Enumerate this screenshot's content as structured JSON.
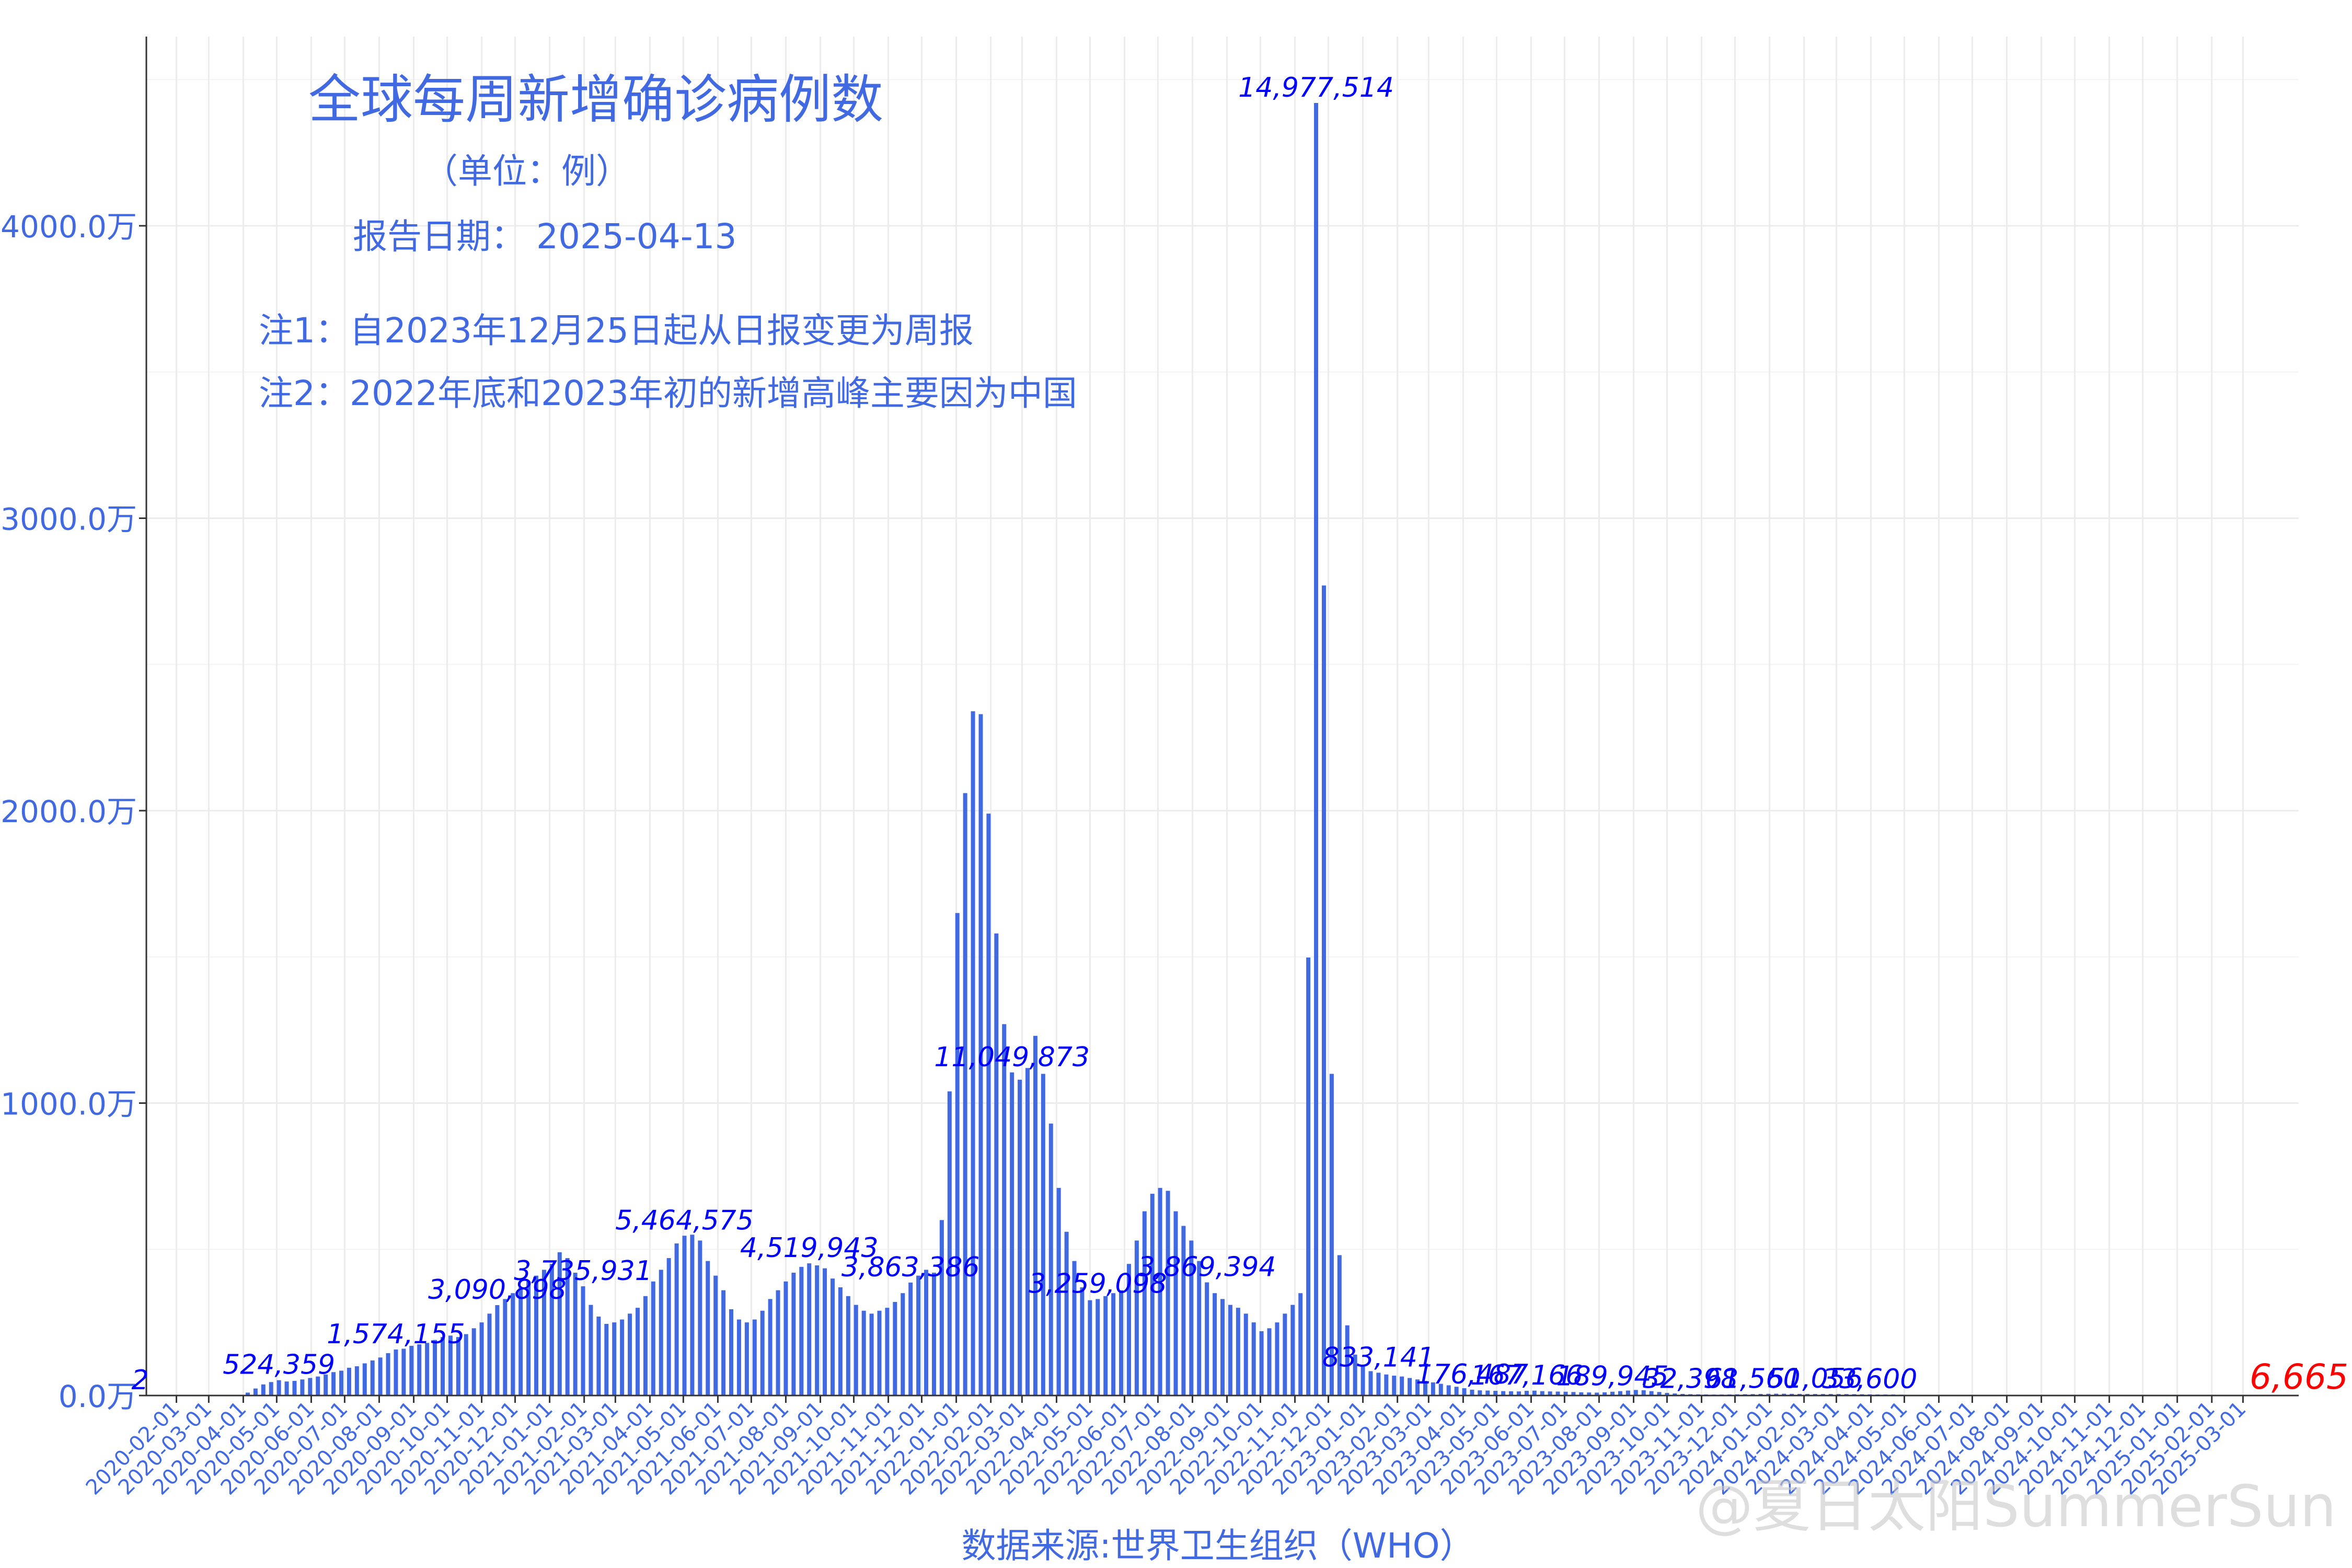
{
  "chart_data": {
    "type": "bar",
    "title": "全球每周新增确诊病例数",
    "subtitle": "（单位：例）",
    "report_date": "报告日期： 2025-04-13",
    "notes": [
      "注1：自2023年12月25日起从日报变更为周报",
      "注2：2022年底和2023年初的新增高峰主要因为中国"
    ],
    "xlabel": "数据来源:世界卫生组织（WHO）",
    "watermark": "@夏日太阳SummerSun",
    "y_ticks": [
      "0.0万",
      "1000.0万",
      "2000.0万",
      "3000.0万",
      "4000.0万"
    ],
    "y_tick_values": [
      0,
      10000000,
      20000000,
      30000000,
      40000000
    ],
    "ylim": [
      0,
      45000000
    ],
    "x_ticks": [
      "2020-02-01",
      "2020-03-01",
      "2020-04-01",
      "2020-05-01",
      "2020-06-01",
      "2020-07-01",
      "2020-08-01",
      "2020-09-01",
      "2020-10-01",
      "2020-11-01",
      "2020-12-01",
      "2021-01-01",
      "2021-02-01",
      "2021-03-01",
      "2021-04-01",
      "2021-05-01",
      "2021-06-01",
      "2021-07-01",
      "2021-08-01",
      "2021-09-01",
      "2021-10-01",
      "2021-11-01",
      "2021-12-01",
      "2022-01-01",
      "2022-02-01",
      "2022-03-01",
      "2022-04-01",
      "2022-05-01",
      "2022-06-01",
      "2022-07-01",
      "2022-08-01",
      "2022-09-01",
      "2022-10-01",
      "2022-11-01",
      "2022-12-01",
      "2023-01-01",
      "2023-02-01",
      "2023-03-01",
      "2023-04-01",
      "2023-05-01",
      "2023-06-01",
      "2023-07-01",
      "2023-08-01",
      "2023-09-01",
      "2023-10-01",
      "2023-11-01",
      "2023-12-01",
      "2024-01-01",
      "2024-02-01",
      "2024-03-01",
      "2024-04-01",
      "2024-05-01",
      "2024-06-01",
      "2024-07-01",
      "2024-08-01",
      "2024-09-01",
      "2024-10-01",
      "2024-11-01",
      "2024-12-01",
      "2025-01-01",
      "2025-02-01",
      "2025-03-01"
    ],
    "x_start": "2020-01-05",
    "week_step_days": 7,
    "values": [
      2,
      0,
      0,
      0,
      0,
      0,
      0,
      0,
      0,
      0,
      0,
      5000,
      20000,
      100000,
      240000,
      380000,
      460000,
      524359,
      480000,
      500000,
      550000,
      600000,
      650000,
      720000,
      800000,
      850000,
      950000,
      1000000,
      1100000,
      1200000,
      1300000,
      1450000,
      1574155,
      1600000,
      1700000,
      1750000,
      1800000,
      1900000,
      2000000,
      2050000,
      2000000,
      2100000,
      2300000,
      2500000,
      2800000,
      3090898,
      3300000,
      3500000,
      3700000,
      3900000,
      4100000,
      4300000,
      4500000,
      4900000,
      4700000,
      4200000,
      3735931,
      3100000,
      2700000,
      2450000,
      2500000,
      2600000,
      2800000,
      3000000,
      3400000,
      3900000,
      4300000,
      4700000,
      5200000,
      5464575,
      5500000,
      5300000,
      4600000,
      4100000,
      3600000,
      2950000,
      2600000,
      2500000,
      2600000,
      2900000,
      3300000,
      3600000,
      3900000,
      4200000,
      4400000,
      4519943,
      4450000,
      4350000,
      4000000,
      3700000,
      3400000,
      3100000,
      2900000,
      2800000,
      2900000,
      3000000,
      3200000,
      3500000,
      3863386,
      4100000,
      4300000,
      4200000,
      6000000,
      10400000,
      16500000,
      20600000,
      23400000,
      23300000,
      19900000,
      15800000,
      12700000,
      11049873,
      10800000,
      11200000,
      12300000,
      11000000,
      9300000,
      7100000,
      5600000,
      4600000,
      3700000,
      3259098,
      3300000,
      3400000,
      3500000,
      3600000,
      4500000,
      5300000,
      6300000,
      6900000,
      7100000,
      7000000,
      6300000,
      5800000,
      5300000,
      4600000,
      3869394,
      3500000,
      3300000,
      3100000,
      3000000,
      2800000,
      2500000,
      2200000,
      2300000,
      2500000,
      2800000,
      3100000,
      3500000,
      14977514,
      44200000,
      27700000,
      11000000,
      4800000,
      2400000,
      1400000,
      1000000,
      833141,
      780000,
      720000,
      680000,
      650000,
      600000,
      550000,
      500000,
      450000,
      400000,
      350000,
      300000,
      250000,
      200000,
      176487,
      170000,
      160000,
      150000,
      145000,
      140000,
      160000,
      167166,
      150000,
      140000,
      135000,
      130000,
      120000,
      110000,
      105000,
      100000,
      110000,
      130000,
      150000,
      170000,
      189945,
      180000,
      150000,
      120000,
      90000,
      70000,
      55000,
      45000,
      40000,
      35000,
      32398,
      33000,
      36000,
      40000,
      44000,
      48000,
      53000,
      58000,
      61560,
      60000,
      57000,
      55000,
      53000,
      52000,
      51000,
      51500,
      51056,
      49000,
      45000,
      42000,
      38000,
      35000,
      34000,
      33600,
      30000,
      25000,
      20000,
      15000,
      10000,
      8000,
      6665
    ],
    "value_labels": [
      {
        "index": 0,
        "text": "2"
      },
      {
        "index": 17,
        "text": "524,359"
      },
      {
        "index": 32,
        "text": "1,574,155"
      },
      {
        "index": 45,
        "text": "3,090,898"
      },
      {
        "index": 56,
        "text": "3,735,931"
      },
      {
        "index": 69,
        "text": "5,464,575"
      },
      {
        "index": 85,
        "text": "4,519,943"
      },
      {
        "index": 98,
        "text": "3,863,386"
      },
      {
        "index": 111,
        "text": "11,049,873"
      },
      {
        "index": 122,
        "text": "3,259,098"
      },
      {
        "index": 136,
        "text": "3,869,394"
      },
      {
        "index": 150,
        "text": "14,977,514"
      },
      {
        "index": 158,
        "text": "833,141"
      },
      {
        "index": 170,
        "text": "176,487"
      },
      {
        "index": 177,
        "text": "167,166"
      },
      {
        "index": 188,
        "text": "189,945"
      },
      {
        "index": 198,
        "text": "32,398"
      },
      {
        "index": 206,
        "text": "61,560"
      },
      {
        "index": 214,
        "text": "51,056"
      },
      {
        "index": 221,
        "text": "33,600"
      },
      {
        "index": 227,
        "text": "6,665"
      }
    ],
    "bar_color": "#4169e1",
    "label_color": "#0000ff",
    "last_label_color": "#ff0000",
    "text_color": "#4169e1",
    "grid": true,
    "grid_color": "#ececec"
  }
}
